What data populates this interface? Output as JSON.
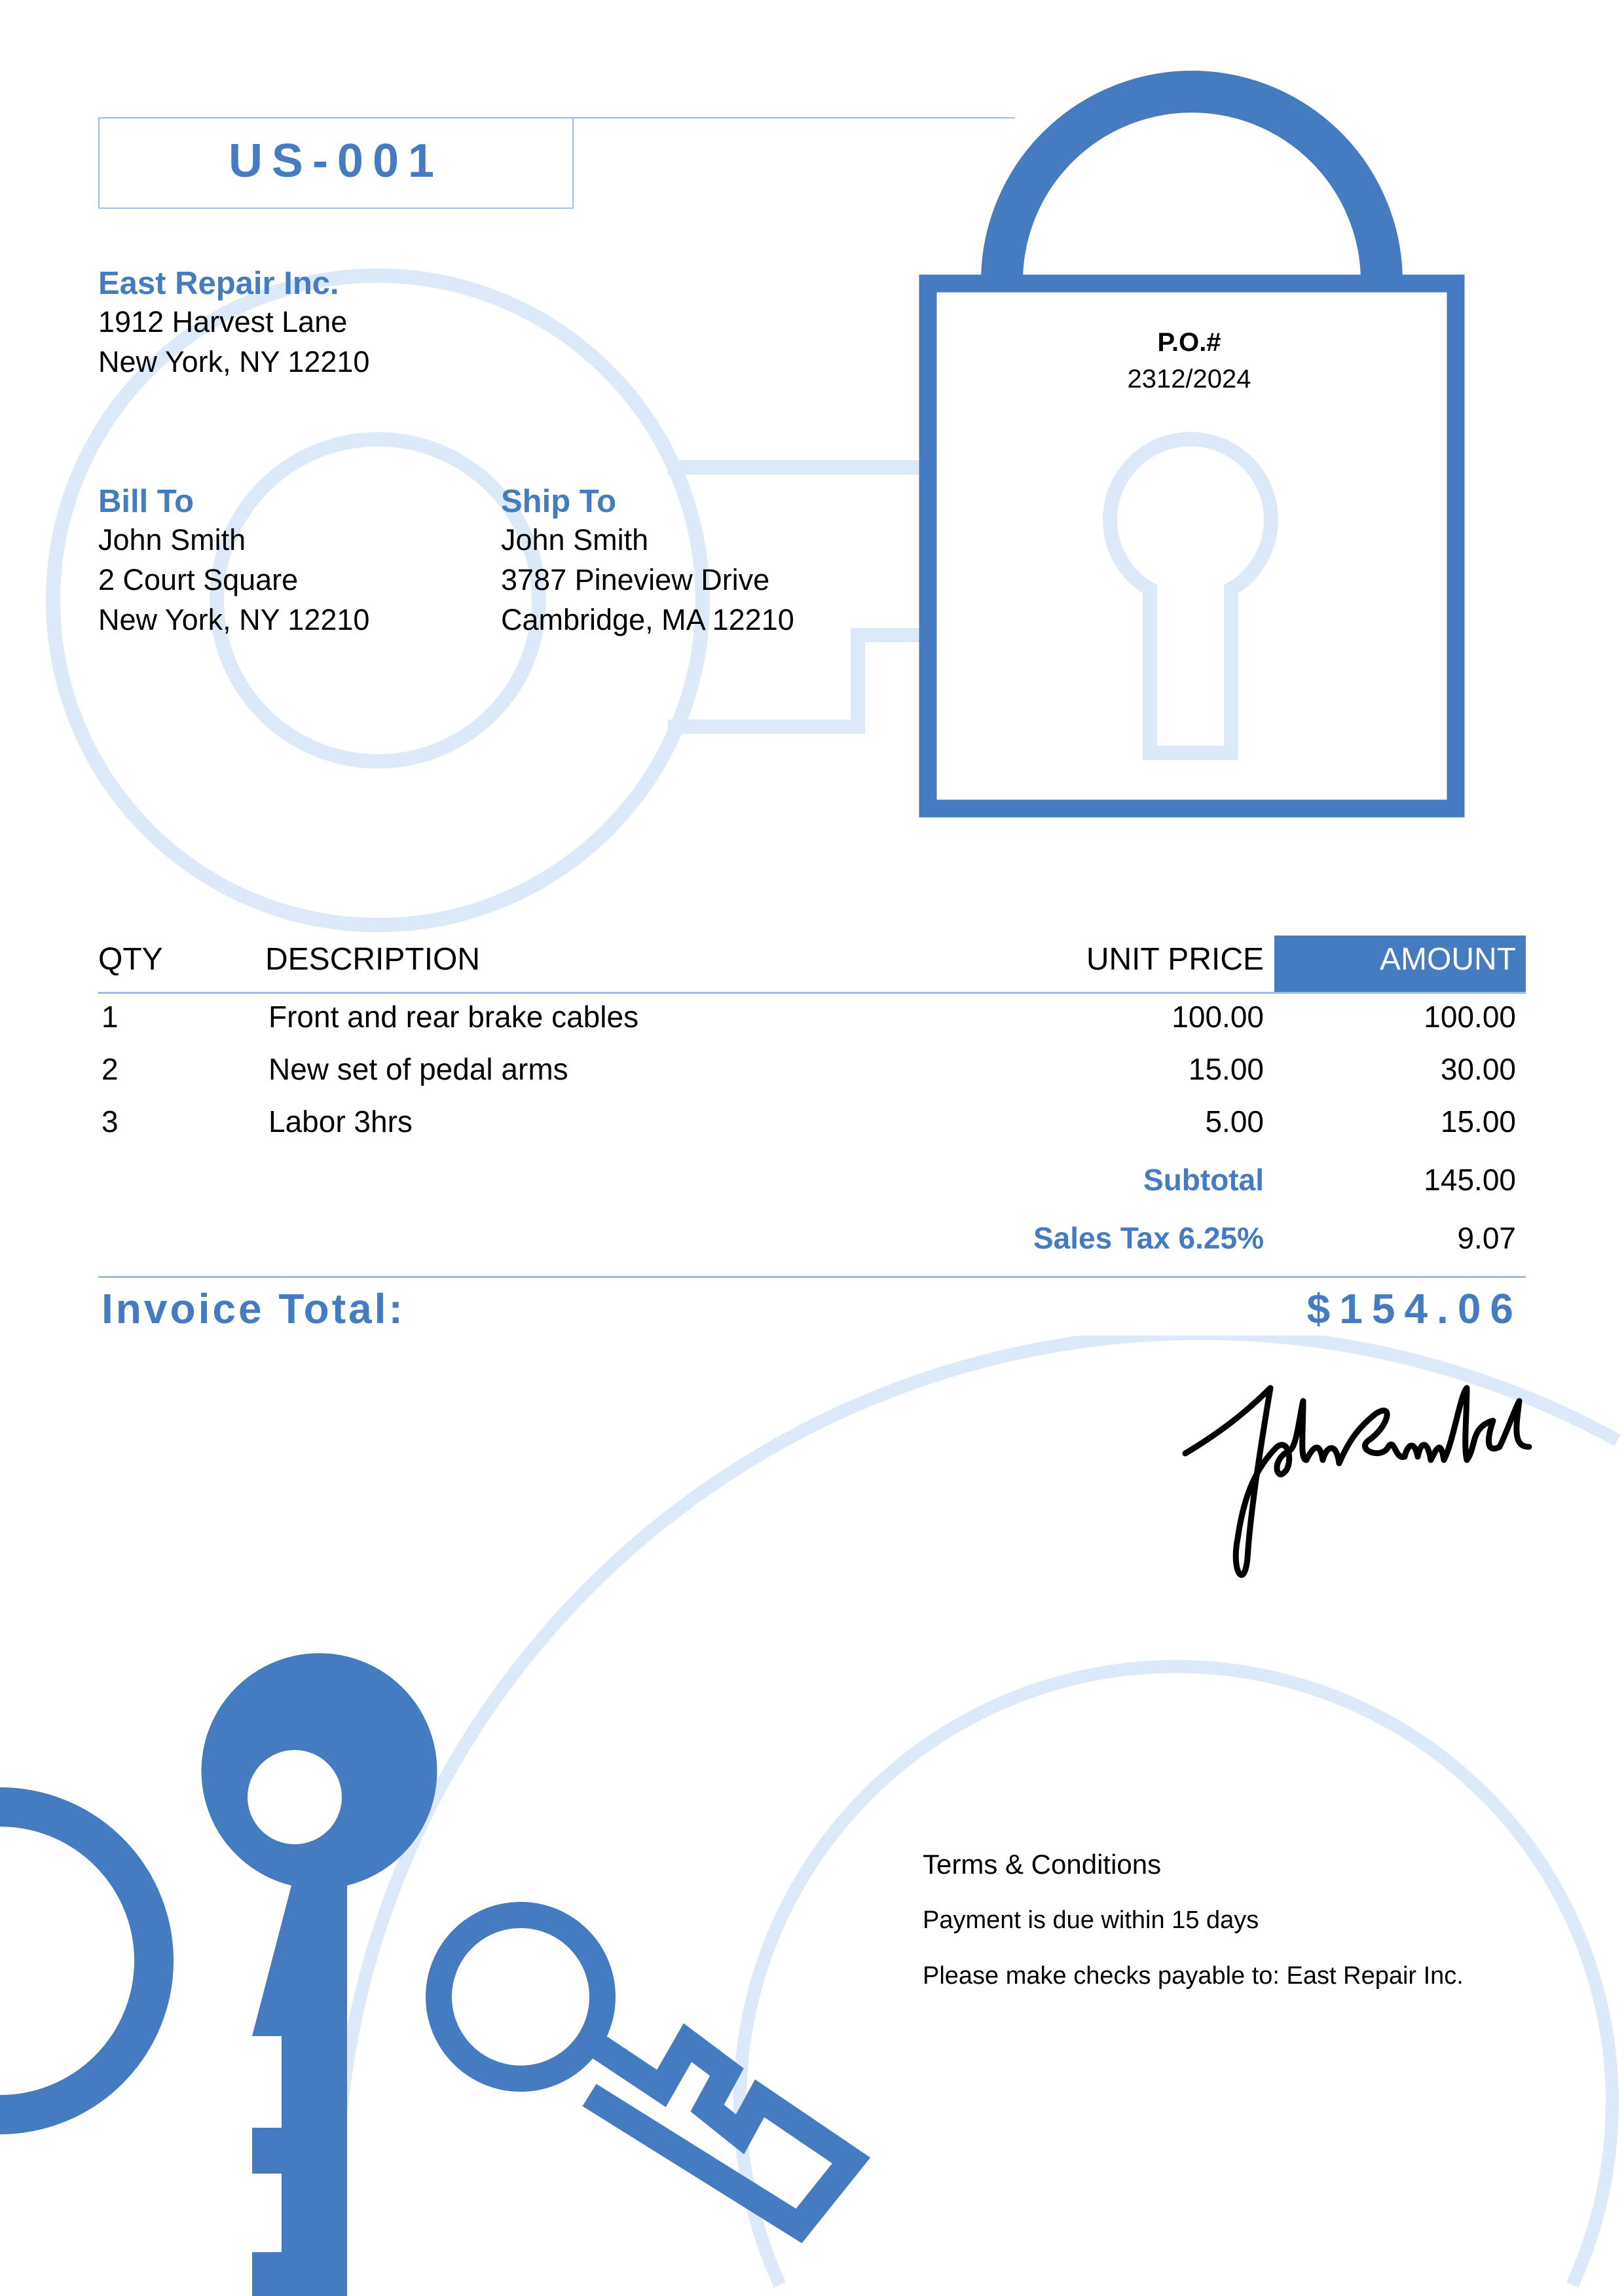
{
  "invoice_number": "US-001",
  "company": {
    "name": "East Repair Inc.",
    "address_line1": "1912 Harvest Lane",
    "address_line2": "New York, NY 12210"
  },
  "bill_to": {
    "label": "Bill To",
    "name": "John Smith",
    "address_line1": "2 Court Square",
    "address_line2": "New York, NY 12210"
  },
  "ship_to": {
    "label": "Ship To",
    "name": "John Smith",
    "address_line1": "3787 Pineview Drive",
    "address_line2": "Cambridge, MA 12210"
  },
  "po": {
    "label": "P.O.#",
    "value": "2312/2024"
  },
  "table": {
    "headers": {
      "qty": "QTY",
      "description": "DESCRIPTION",
      "unit_price": "UNIT PRICE",
      "amount": "AMOUNT"
    },
    "rows": [
      {
        "qty": "1",
        "description": "Front and rear brake cables",
        "unit_price": "100.00",
        "amount": "100.00"
      },
      {
        "qty": "2",
        "description": "New set of pedal arms",
        "unit_price": "15.00",
        "amount": "30.00"
      },
      {
        "qty": "3",
        "description": "Labor 3hrs",
        "unit_price": "5.00",
        "amount": "15.00"
      }
    ],
    "subtotal_label": "Subtotal",
    "subtotal": "145.00",
    "tax_label": "Sales Tax 6.25%",
    "tax": "9.07"
  },
  "total": {
    "label": "Invoice Total:",
    "value": "$154.06"
  },
  "signature": "John Smith",
  "terms": {
    "title": "Terms & Conditions",
    "line1": "Payment is due within 15 days",
    "line2": "Please make checks payable to: East Repair Inc."
  },
  "colors": {
    "accent": "#457bc0",
    "light": "#dbe9f8"
  },
  "icons": [
    "key-icon",
    "padlock-icon",
    "keyhole-icon"
  ]
}
